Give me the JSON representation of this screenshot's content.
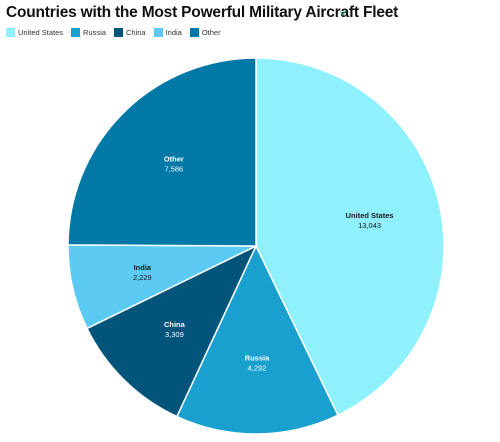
{
  "chart_data": {
    "type": "pie",
    "title": "Countries with the Most Powerful Military Aircraft Fleet",
    "legend_position": "top-left",
    "slices": [
      {
        "name": "United States",
        "value": 13043,
        "value_label": "13,043",
        "color": "#8ef1fd",
        "label_color": "#1a1a1a"
      },
      {
        "name": "Russia",
        "value": 4292,
        "value_label": "4,292",
        "color": "#1aa0cf",
        "label_color": "#ffffff"
      },
      {
        "name": "China",
        "value": 3309,
        "value_label": "3,309",
        "color": "#03547a",
        "label_color": "#ffffff"
      },
      {
        "name": "India",
        "value": 2229,
        "value_label": "2,229",
        "color": "#5ccbf4",
        "label_color": "#1a1a1a"
      },
      {
        "name": "Other",
        "value": 7586,
        "value_label": "7,586",
        "color": "#0278a6",
        "label_color": "#ffffff"
      }
    ]
  }
}
